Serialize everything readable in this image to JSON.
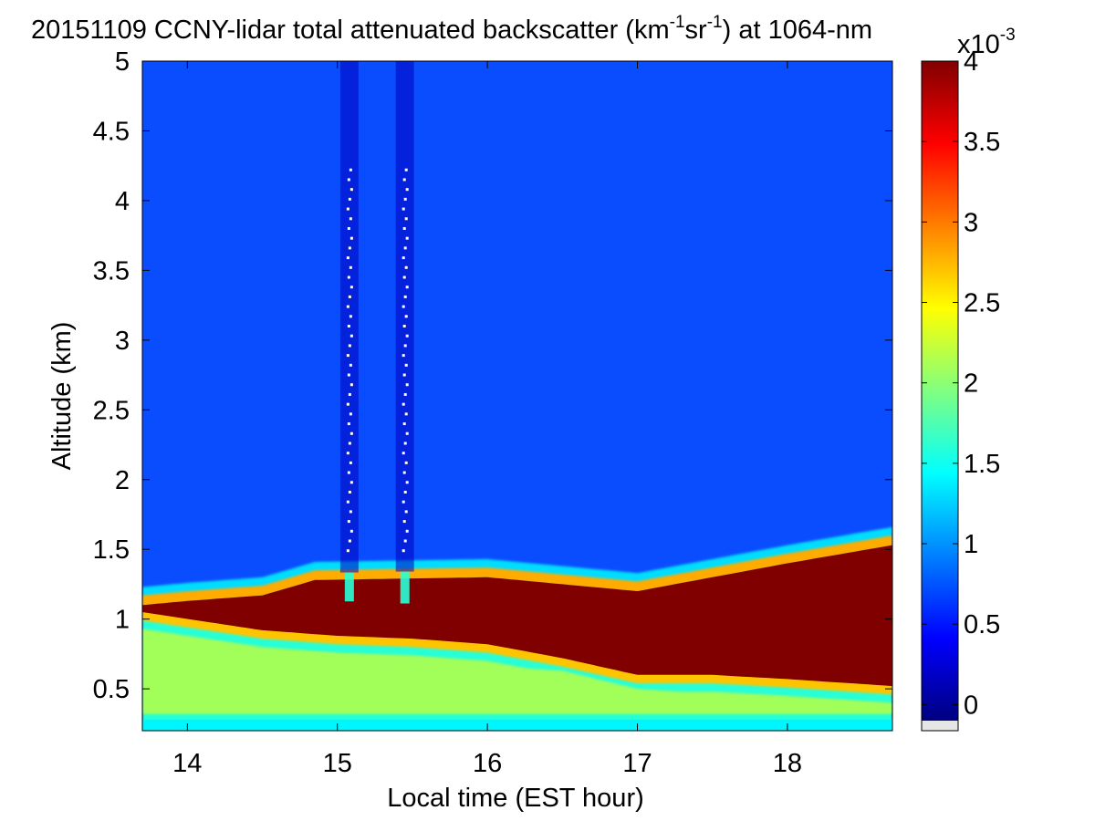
{
  "chart_data": {
    "type": "heatmap",
    "title": "20151109 CCNY-lidar total attenuated backscatter (km-1sr-1) at 1064-nm",
    "title_parts": {
      "prefix": "20151109 CCNY-lidar total attenuated backscatter (km",
      "sup1": "-1",
      "mid": "sr",
      "sup2": "-1",
      "suffix": ") at 1064-nm"
    },
    "xlabel": "Local time (EST hour)",
    "ylabel": "Altitude (km)",
    "xlim": [
      13.7,
      18.7
    ],
    "ylim": [
      0.2,
      5
    ],
    "xticks": [
      14,
      15,
      16,
      17,
      18
    ],
    "yticks": [
      0.5,
      1,
      1.5,
      2,
      2.5,
      3,
      3.5,
      4,
      4.5,
      5
    ],
    "xtick_labels": [
      "14",
      "15",
      "16",
      "17",
      "18"
    ],
    "ytick_labels": [
      "0.5",
      "1",
      "1.5",
      "2",
      "2.5",
      "3",
      "3.5",
      "4",
      "4.5",
      "5"
    ],
    "colormap": "jet",
    "color_range": [
      -0.1,
      4
    ],
    "colorbar": {
      "ticks": [
        0,
        0.5,
        1,
        1.5,
        2,
        2.5,
        3,
        3.5,
        4
      ],
      "tick_labels": [
        "0",
        "0.5",
        "1",
        "1.5",
        "2",
        "2.5",
        "3",
        "3.5",
        "4"
      ],
      "multiplier_base": "x10",
      "multiplier_exp": "-3",
      "under_color": "#e6e6e6"
    },
    "layers": {
      "surface_layer_top_km": [
        [
          13.7,
          0.78
        ],
        [
          14.5,
          0.8
        ],
        [
          15.5,
          0.82
        ],
        [
          16.5,
          0.75
        ],
        [
          17.0,
          0.62
        ],
        [
          18.0,
          0.55
        ],
        [
          18.7,
          0.5
        ]
      ],
      "aerosol_layer_top_km": [
        [
          13.7,
          1.15
        ],
        [
          14.0,
          1.18
        ],
        [
          14.5,
          1.22
        ],
        [
          14.85,
          1.33
        ],
        [
          16.0,
          1.35
        ],
        [
          16.5,
          1.3
        ],
        [
          17.0,
          1.25
        ],
        [
          17.5,
          1.35
        ],
        [
          18.0,
          1.45
        ],
        [
          18.7,
          1.58
        ]
      ],
      "aerosol_layer_bottom_km": [
        [
          13.7,
          1.05
        ],
        [
          14.5,
          0.92
        ],
        [
          15.0,
          0.88
        ],
        [
          15.5,
          0.86
        ],
        [
          16.0,
          0.82
        ],
        [
          16.5,
          0.72
        ],
        [
          17.0,
          0.6
        ],
        [
          17.5,
          0.6
        ],
        [
          18.0,
          0.57
        ],
        [
          18.7,
          0.52
        ]
      ],
      "precipitation_streaks_hour": [
        15.08,
        15.45
      ]
    }
  }
}
